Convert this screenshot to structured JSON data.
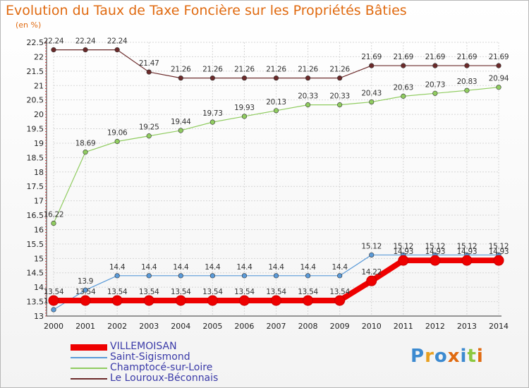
{
  "title": "Evolution du Taux de Taxe Foncière sur les Propriétés Bâties",
  "unit_label": "(en %)",
  "logo": {
    "text": "Proxiti",
    "colors": [
      "#3c8ad0",
      "#e8a020",
      "#3c8ad0",
      "#e06a10",
      "#3c8ad0",
      "#8cc840",
      "#e06a10"
    ]
  },
  "chart_data": {
    "type": "line",
    "x": [
      "2000",
      "2001",
      "2002",
      "2003",
      "2004",
      "2005",
      "2006",
      "2007",
      "2008",
      "2009",
      "2010",
      "2011",
      "2012",
      "2013",
      "2014"
    ],
    "ylim": [
      13,
      22.5
    ],
    "yticks": [
      "13",
      "13.5",
      "14",
      "14.5",
      "15",
      "15.5",
      "16",
      "16.5",
      "17",
      "17.5",
      "18",
      "18.5",
      "19",
      "19.5",
      "20",
      "20.5",
      "21",
      "21.5",
      "22",
      "22.5"
    ],
    "grid": true,
    "legend_position": "bottom-left",
    "series": [
      {
        "name": "Le Louroux-Béconnais",
        "color": "#6b2a2a",
        "width": 1.2,
        "values": [
          22.24,
          22.24,
          22.24,
          21.47,
          21.26,
          21.26,
          21.26,
          21.26,
          21.26,
          21.26,
          21.69,
          21.69,
          21.69,
          21.69,
          21.69
        ],
        "labels": [
          "22.24",
          "22.24",
          "22.24",
          "21.47",
          "21.26",
          "21.26",
          "21.26",
          "21.26",
          "21.26",
          "21.26",
          "21.69",
          "21.69",
          "21.69",
          "21.69",
          "21.69"
        ]
      },
      {
        "name": "Champtocé-sur-Loire",
        "color": "#90cc60",
        "width": 1.2,
        "values": [
          16.22,
          18.69,
          19.06,
          19.25,
          19.44,
          19.73,
          19.93,
          20.13,
          20.33,
          20.33,
          20.43,
          20.63,
          20.73,
          20.83,
          20.94
        ],
        "labels": [
          "16.22",
          "18.69",
          "19.06",
          "19.25",
          "19.44",
          "19.73",
          "19.93",
          "20.13",
          "20.33",
          "20.33",
          "20.43",
          "20.63",
          "20.73",
          "20.83",
          "20.94"
        ]
      },
      {
        "name": "Saint-Sigismond",
        "color": "#5a9ad8",
        "width": 1.2,
        "values": [
          13.22,
          13.9,
          14.4,
          14.4,
          14.4,
          14.4,
          14.4,
          14.4,
          14.4,
          14.4,
          15.12,
          15.12,
          15.12,
          15.12,
          15.12
        ],
        "labels": [
          "13.22",
          "13.9",
          "14.4",
          "14.4",
          "14.4",
          "14.4",
          "14.4",
          "14.4",
          "14.4",
          "14.4",
          "15.12",
          "15.12",
          "15.12",
          "15.12",
          "15.12"
        ]
      },
      {
        "name": "VILLEMOISAN",
        "color": "#ee0000",
        "width": 8,
        "values": [
          13.54,
          13.54,
          13.54,
          13.54,
          13.54,
          13.54,
          13.54,
          13.54,
          13.54,
          13.54,
          14.22,
          14.93,
          14.93,
          14.93,
          14.93
        ],
        "labels": [
          "13.54",
          "13.54",
          "13.54",
          "13.54",
          "13.54",
          "13.54",
          "13.54",
          "13.54",
          "13.54",
          "13.54",
          "14.22",
          "14.93",
          "14.93",
          "14.93",
          "14.93"
        ]
      }
    ],
    "legend": [
      "VILLEMOISAN",
      "Saint-Sigismond",
      "Champtocé-sur-Loire",
      "Le Louroux-Béconnais"
    ]
  }
}
